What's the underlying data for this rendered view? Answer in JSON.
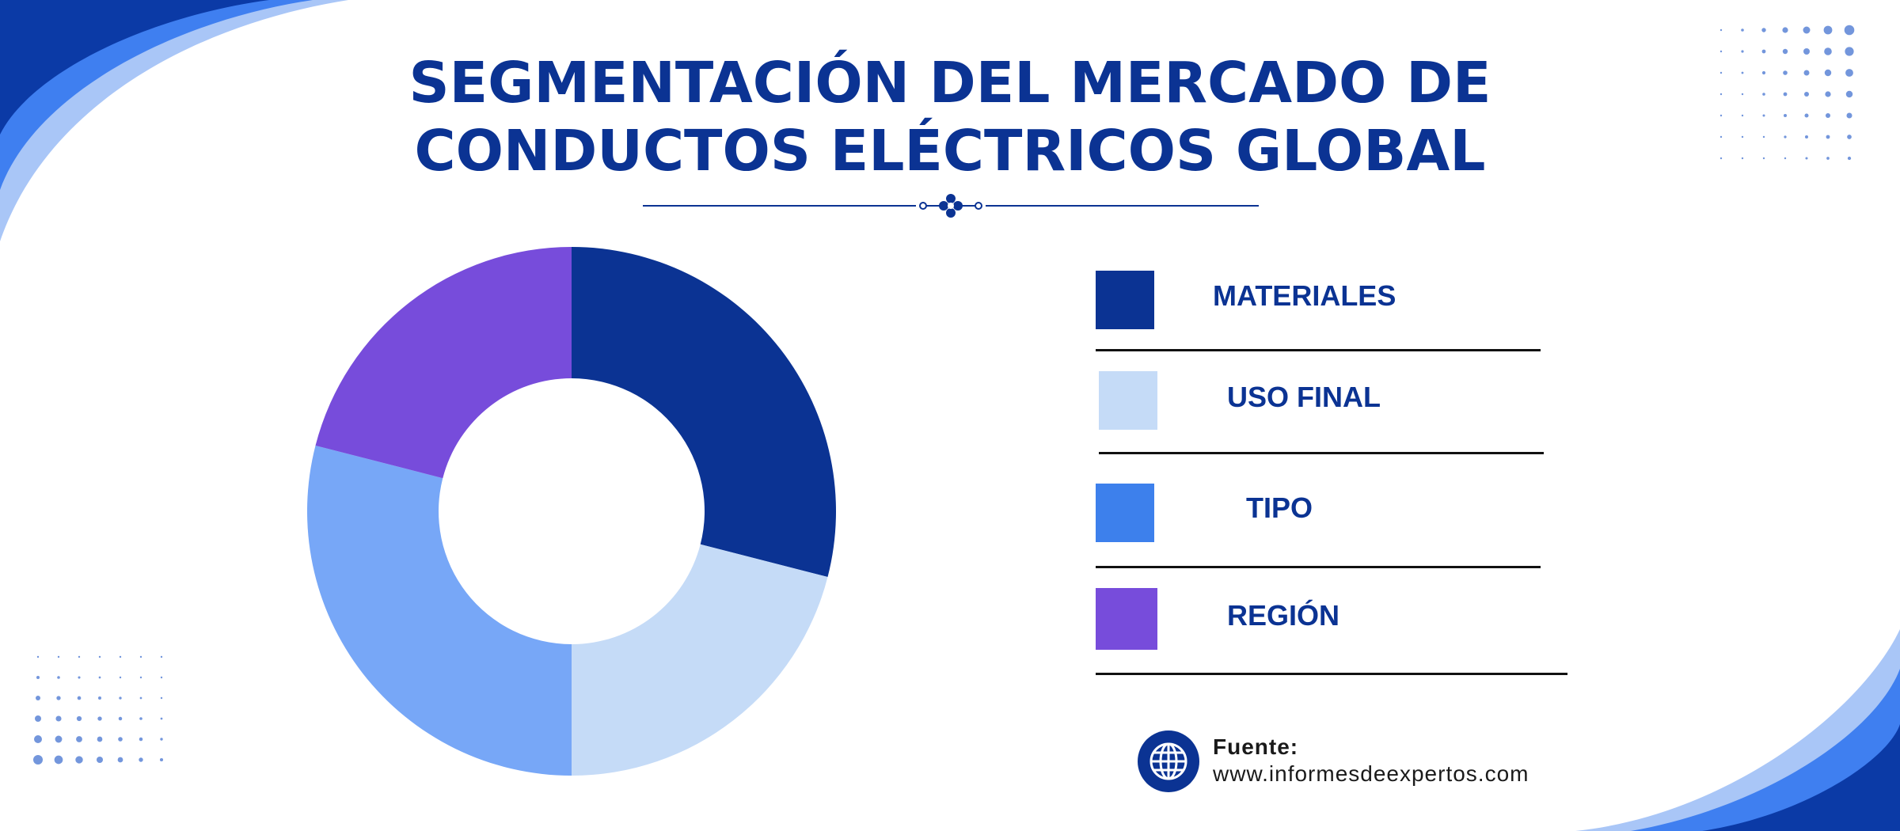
{
  "title_lines": [
    "SEGMENTACIÓN DEL MERCADO DE",
    "CONDUCTOS ELÉCTRICOS GLOBAL"
  ],
  "colors": {
    "brand": "#0b3393",
    "wave_dark": "#0b3aa6",
    "wave_mid": "#3f7ff0",
    "wave_light": "#a9c6f7",
    "dots": "#5b84d6"
  },
  "chart_data": {
    "type": "pie",
    "style": "donut",
    "categories": [
      "MATERIALES",
      "USO FINAL",
      "TIPO",
      "REGIÓN"
    ],
    "values": [
      29,
      21,
      29,
      21
    ],
    "colors": [
      "#0b3393",
      "#c5dbf7",
      "#77a7f7",
      "#774cdb"
    ],
    "legend_position": "right",
    "legend_swatch_colors": [
      "#0b3393",
      "#c5dbf7",
      "#3d80ec",
      "#774cdb"
    ]
  },
  "source": {
    "label": "Fuente:",
    "url": "www.informesdeexpertos.com",
    "icon": "globe-icon"
  }
}
